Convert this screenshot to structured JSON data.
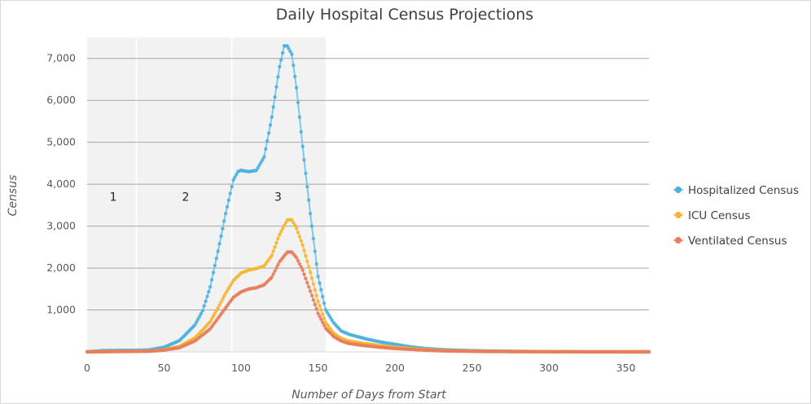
{
  "chart_data": {
    "type": "line",
    "title": "Daily Hospital Census Projections",
    "xlabel": "Number of Days from Start",
    "ylabel": "Census",
    "xlim": [
      0,
      365
    ],
    "ylim": [
      0,
      7500
    ],
    "x_ticks": [
      0,
      50,
      100,
      150,
      200,
      250,
      300,
      350
    ],
    "x_tick_labels": [
      "0",
      "50",
      "100",
      "150",
      "200",
      "250",
      "300",
      "350"
    ],
    "y_ticks": [
      1000,
      2000,
      3000,
      4000,
      5000,
      6000,
      7000
    ],
    "y_tick_labels": [
      "1,000",
      "2,000",
      "3,000",
      "4,000",
      "5,000",
      "6,000",
      "7,000"
    ],
    "grid": "horizontal",
    "legend_position": "right",
    "phases": [
      {
        "label": "1",
        "x_start": 0,
        "x_end": 32,
        "label_x": 17,
        "label_y": 3700
      },
      {
        "label": "2",
        "x_start": 32,
        "x_end": 94,
        "label_x": 64,
        "label_y": 3700
      },
      {
        "label": "3",
        "x_start": 94,
        "x_end": 155,
        "label_x": 124,
        "label_y": 3700
      }
    ],
    "series": [
      {
        "name": "Hospitalized Census",
        "color": "#7fc8e8",
        "marker_color": "#4bb0de",
        "points": [
          [
            0,
            0
          ],
          [
            10,
            30
          ],
          [
            20,
            35
          ],
          [
            30,
            35
          ],
          [
            40,
            45
          ],
          [
            50,
            110
          ],
          [
            60,
            270
          ],
          [
            70,
            640
          ],
          [
            75,
            980
          ],
          [
            80,
            1550
          ],
          [
            85,
            2400
          ],
          [
            90,
            3300
          ],
          [
            95,
            4100
          ],
          [
            98,
            4300
          ],
          [
            100,
            4330
          ],
          [
            105,
            4300
          ],
          [
            110,
            4330
          ],
          [
            115,
            4650
          ],
          [
            120,
            5600
          ],
          [
            125,
            6800
          ],
          [
            128,
            7300
          ],
          [
            130,
            7300
          ],
          [
            133,
            7100
          ],
          [
            136,
            6300
          ],
          [
            140,
            4900
          ],
          [
            145,
            3300
          ],
          [
            150,
            1800
          ],
          [
            155,
            1000
          ],
          [
            160,
            700
          ],
          [
            165,
            500
          ],
          [
            170,
            420
          ],
          [
            180,
            320
          ],
          [
            190,
            240
          ],
          [
            200,
            180
          ],
          [
            210,
            120
          ],
          [
            220,
            80
          ],
          [
            230,
            55
          ],
          [
            240,
            40
          ],
          [
            250,
            30
          ],
          [
            260,
            20
          ],
          [
            280,
            10
          ],
          [
            300,
            5
          ],
          [
            330,
            2
          ],
          [
            365,
            0
          ]
        ]
      },
      {
        "name": "ICU Census",
        "color": "#f5c96a",
        "marker_color": "#f3b634",
        "points": [
          [
            0,
            0
          ],
          [
            20,
            10
          ],
          [
            40,
            20
          ],
          [
            50,
            50
          ],
          [
            60,
            130
          ],
          [
            70,
            330
          ],
          [
            80,
            720
          ],
          [
            85,
            1050
          ],
          [
            90,
            1400
          ],
          [
            95,
            1700
          ],
          [
            100,
            1880
          ],
          [
            105,
            1950
          ],
          [
            110,
            1990
          ],
          [
            115,
            2050
          ],
          [
            120,
            2300
          ],
          [
            125,
            2800
          ],
          [
            130,
            3150
          ],
          [
            133,
            3150
          ],
          [
            136,
            2950
          ],
          [
            140,
            2550
          ],
          [
            145,
            1900
          ],
          [
            150,
            1200
          ],
          [
            155,
            700
          ],
          [
            160,
            450
          ],
          [
            165,
            320
          ],
          [
            170,
            260
          ],
          [
            180,
            200
          ],
          [
            190,
            150
          ],
          [
            200,
            110
          ],
          [
            210,
            80
          ],
          [
            220,
            55
          ],
          [
            230,
            35
          ],
          [
            240,
            25
          ],
          [
            260,
            12
          ],
          [
            300,
            4
          ],
          [
            365,
            0
          ]
        ]
      },
      {
        "name": "Ventilated Census",
        "color": "#eba891",
        "marker_color": "#e87d5a",
        "points": [
          [
            0,
            0
          ],
          [
            20,
            8
          ],
          [
            40,
            15
          ],
          [
            50,
            40
          ],
          [
            60,
            100
          ],
          [
            70,
            260
          ],
          [
            80,
            550
          ],
          [
            85,
            800
          ],
          [
            90,
            1050
          ],
          [
            95,
            1300
          ],
          [
            100,
            1430
          ],
          [
            105,
            1500
          ],
          [
            110,
            1530
          ],
          [
            115,
            1600
          ],
          [
            120,
            1780
          ],
          [
            125,
            2150
          ],
          [
            130,
            2380
          ],
          [
            133,
            2380
          ],
          [
            136,
            2250
          ],
          [
            140,
            1950
          ],
          [
            145,
            1450
          ],
          [
            150,
            920
          ],
          [
            155,
            560
          ],
          [
            160,
            370
          ],
          [
            165,
            260
          ],
          [
            170,
            200
          ],
          [
            180,
            150
          ],
          [
            190,
            110
          ],
          [
            200,
            80
          ],
          [
            210,
            60
          ],
          [
            220,
            40
          ],
          [
            230,
            25
          ],
          [
            240,
            18
          ],
          [
            260,
            9
          ],
          [
            300,
            3
          ],
          [
            365,
            0
          ]
        ]
      }
    ]
  }
}
